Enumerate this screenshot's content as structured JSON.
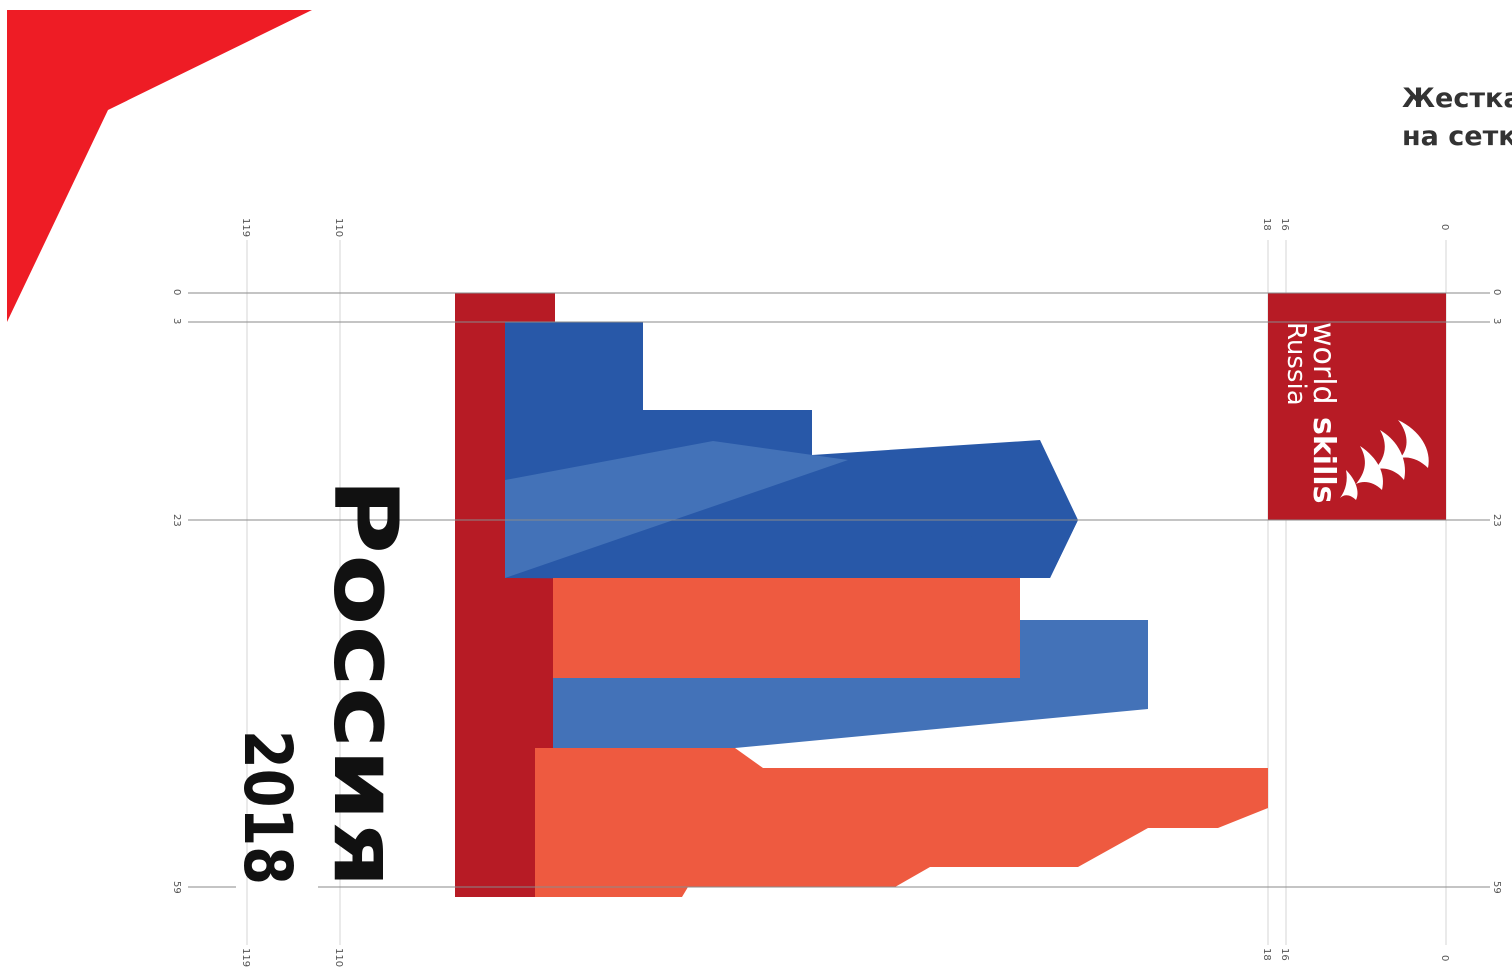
{
  "title": {
    "line1": "Жестка",
    "line2": "на сетк"
  },
  "poster": {
    "word": "Россия",
    "year": "2018"
  },
  "logo": {
    "world": "world",
    "skills": "skills",
    "country": "Russia",
    "icon": "worldskills-flame-icon"
  },
  "grid": {
    "vertical_labels": [
      "119",
      "110",
      "18",
      "16",
      "0"
    ],
    "horizontal_labels": [
      "0",
      "3",
      "23",
      "59"
    ]
  },
  "colors": {
    "corner_red": "#ee1c25",
    "dark_red": "#b71b25",
    "blue": "#2858a8",
    "light_blue": "#4372b8",
    "orange": "#ee5a40",
    "grid_line": "#cfcfcf",
    "guide_line": "#888888"
  }
}
